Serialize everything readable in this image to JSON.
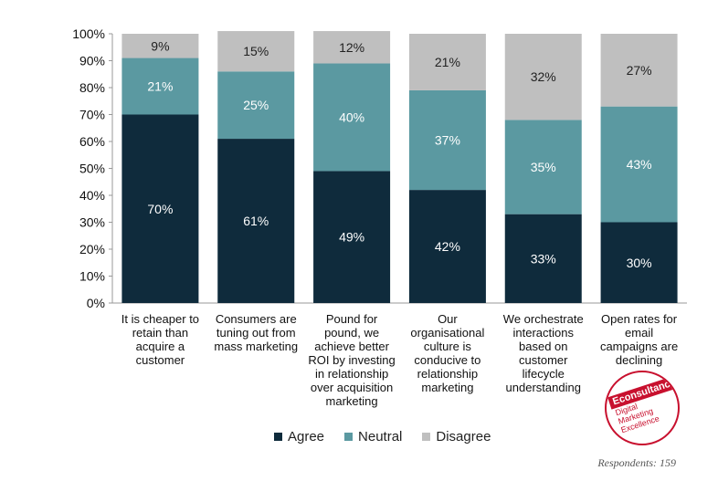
{
  "chart_data": {
    "type": "bar",
    "stacked": true,
    "categories": [
      "It is cheaper to retain than acquire a customer",
      "Consumers are tuning out from mass marketing",
      "Pound for pound, we achieve better ROI by investing in relationship over acquisition marketing",
      "Our organisational culture is conducive to relationship marketing",
      "We orchestrate interactions based on customer lifecycle understanding",
      "Open rates for email campaigns are declining"
    ],
    "category_lines": [
      [
        "It is cheaper to",
        "retain than",
        "acquire a",
        "customer"
      ],
      [
        "Consumers are",
        "tuning out from",
        "mass marketing"
      ],
      [
        "Pound for",
        "pound, we",
        "achieve better",
        "ROI by investing",
        "in relationship",
        "over acquisition",
        "marketing"
      ],
      [
        "Our",
        "organisational",
        "culture is",
        "conducive to",
        "relationship",
        "marketing"
      ],
      [
        "We orchestrate",
        "interactions",
        "based on",
        "customer",
        "lifecycle",
        "understanding"
      ],
      [
        "Open rates for",
        "email",
        "campaigns are",
        "declining"
      ]
    ],
    "series": [
      {
        "name": "Agree",
        "values": [
          70,
          61,
          49,
          42,
          33,
          30
        ],
        "labels": [
          "70%",
          "61%",
          "49%",
          "42%",
          "33%",
          "30%"
        ],
        "color": "#0f2b3c"
      },
      {
        "name": "Neutral",
        "values": [
          21,
          25,
          40,
          37,
          35,
          43
        ],
        "labels": [
          "21%",
          "25%",
          "40%",
          "37%",
          "35%",
          "43%"
        ],
        "color": "#5b99a1"
      },
      {
        "name": "Disagree",
        "values": [
          9,
          15,
          12,
          21,
          32,
          27
        ],
        "labels": [
          "9%",
          "15%",
          "12%",
          "21%",
          "32%",
          "27%"
        ],
        "color": "#bfbfbf"
      }
    ],
    "y_ticks": [
      "0%",
      "10%",
      "20%",
      "30%",
      "40%",
      "50%",
      "60%",
      "70%",
      "80%",
      "90%",
      "100%"
    ],
    "ylim": [
      0,
      100
    ],
    "grid": false,
    "legend_position": "bottom"
  },
  "footnote": "Respondents: 159",
  "badge": {
    "brand": "Econsultancy",
    "lines": [
      "Digital",
      "Marketing",
      "Excellence"
    ]
  }
}
